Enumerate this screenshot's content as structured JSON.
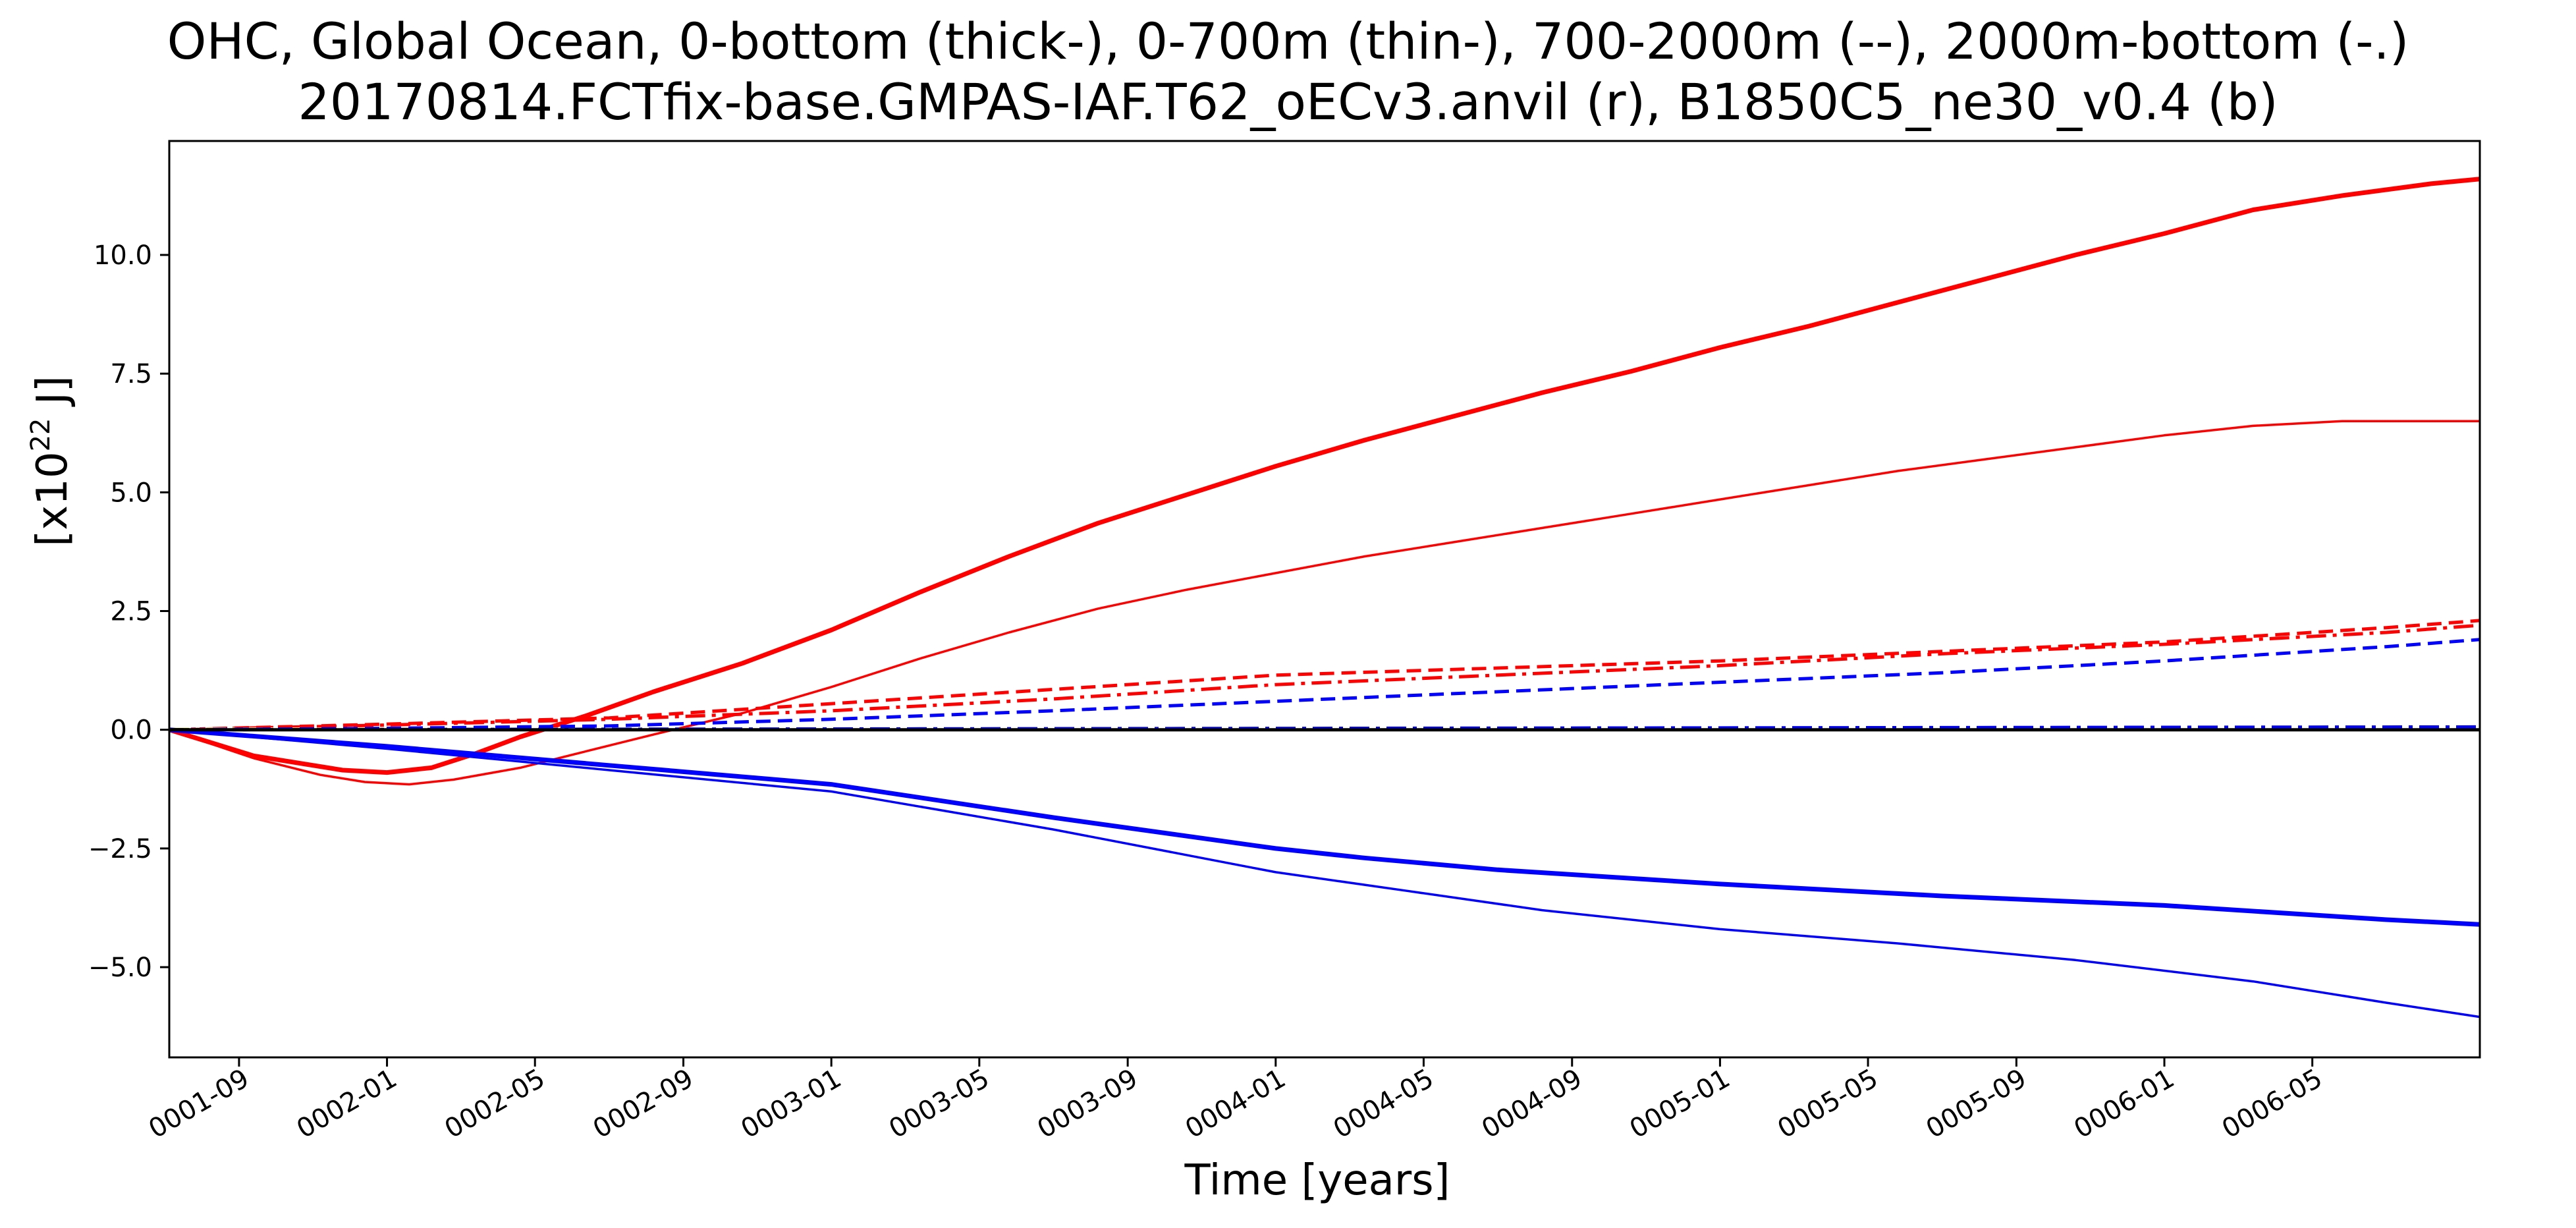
{
  "chart_data": {
    "type": "line",
    "title": "OHC, Global Ocean, 0-bottom (thick-), 0-700m (thin-), 700-2000m (--), 2000m-bottom (-.)",
    "subtitle": "20170814.FCTfix-base.GMPAS-IAF.T62_oECv3.anvil (r), B1850C5_ne30_v0.4 (b)",
    "xlabel": "Time [years]",
    "ylabel_base": "[x10",
    "ylabel_exp": "22",
    "ylabel_unit": " J]",
    "xlim": [
      0.51,
      5.71
    ],
    "ylim": [
      -6.9,
      12.4
    ],
    "grid": false,
    "legend": "none",
    "yticks": [
      -5.0,
      -2.5,
      0.0,
      2.5,
      5.0,
      7.5,
      10.0
    ],
    "ytick_labels": [
      "−5.0",
      "−2.5",
      "0.0",
      "2.5",
      "5.0",
      "7.5",
      "10.0"
    ],
    "xticks": [
      0.667,
      1.0,
      1.333,
      1.667,
      2.0,
      2.333,
      2.667,
      3.0,
      3.333,
      3.667,
      4.0,
      4.333,
      4.667,
      5.0,
      5.333
    ],
    "xtick_labels": [
      "0001-09",
      "0002-01",
      "0002-05",
      "0002-09",
      "0003-01",
      "0003-05",
      "0003-09",
      "0004-01",
      "0004-05",
      "0004-09",
      "0005-01",
      "0005-05",
      "0005-09",
      "0006-01",
      "0006-05"
    ],
    "zero_line_color": "#000000",
    "series": [
      {
        "color": "#ff0000",
        "style": "solid",
        "width": 7,
        "x": [
          0.51,
          0.7,
          0.9,
          1.0,
          1.1,
          1.2,
          1.3,
          1.45,
          1.6,
          1.8,
          2.0,
          2.2,
          2.4,
          2.6,
          2.8,
          3.0,
          3.2,
          3.4,
          3.6,
          3.8,
          4.0,
          4.2,
          4.4,
          4.6,
          4.8,
          5.0,
          5.2,
          5.4,
          5.6,
          5.71
        ],
        "y": [
          0.0,
          -0.55,
          -0.85,
          -0.9,
          -0.8,
          -0.5,
          -0.15,
          0.3,
          0.8,
          1.4,
          2.1,
          2.9,
          3.65,
          4.35,
          4.95,
          5.55,
          6.1,
          6.6,
          7.1,
          7.55,
          8.05,
          8.5,
          9.0,
          9.5,
          10.0,
          10.45,
          10.95,
          11.25,
          11.5,
          11.6
        ]
      },
      {
        "color": "#ff0000",
        "style": "solid",
        "width": 3.5,
        "x": [
          0.51,
          0.7,
          0.85,
          0.95,
          1.05,
          1.15,
          1.3,
          1.45,
          1.6,
          1.8,
          2.0,
          2.2,
          2.4,
          2.6,
          2.8,
          3.0,
          3.2,
          3.4,
          3.6,
          3.8,
          4.0,
          4.2,
          4.4,
          4.6,
          4.8,
          5.0,
          5.2,
          5.4,
          5.6,
          5.71
        ],
        "y": [
          0.0,
          -0.6,
          -0.95,
          -1.1,
          -1.15,
          -1.05,
          -0.8,
          -0.45,
          -0.1,
          0.35,
          0.9,
          1.5,
          2.05,
          2.55,
          2.95,
          3.3,
          3.65,
          3.95,
          4.25,
          4.55,
          4.85,
          5.15,
          5.45,
          5.7,
          5.95,
          6.2,
          6.4,
          6.5,
          6.5,
          6.5
        ]
      },
      {
        "color": "#ff0000",
        "style": "dash",
        "width": 5,
        "x": [
          0.51,
          1.0,
          1.5,
          2.0,
          2.5,
          3.0,
          3.5,
          4.0,
          4.5,
          5.0,
          5.5,
          5.71
        ],
        "y": [
          0.0,
          0.12,
          0.25,
          0.55,
          0.85,
          1.15,
          1.3,
          1.45,
          1.65,
          1.85,
          2.15,
          2.3
        ]
      },
      {
        "color": "#ff0000",
        "style": "dashdot",
        "width": 5,
        "x": [
          0.51,
          1.0,
          1.5,
          2.0,
          2.5,
          3.0,
          3.5,
          4.0,
          4.5,
          5.0,
          5.5,
          5.71
        ],
        "y": [
          0.0,
          0.1,
          0.22,
          0.4,
          0.65,
          0.95,
          1.15,
          1.35,
          1.6,
          1.8,
          2.05,
          2.2
        ]
      },
      {
        "color": "#ffff66",
        "style": "dashdot",
        "width": 4,
        "x": [
          0.51,
          5.71
        ],
        "y": [
          0.02,
          0.04
        ]
      },
      {
        "color": "#0000ff",
        "style": "solid",
        "width": 7,
        "x": [
          0.51,
          1.0,
          1.5,
          2.0,
          2.5,
          3.0,
          3.2,
          3.5,
          4.0,
          4.5,
          5.0,
          5.5,
          5.71
        ],
        "y": [
          0.0,
          -0.35,
          -0.75,
          -1.15,
          -1.85,
          -2.5,
          -2.7,
          -2.95,
          -3.25,
          -3.5,
          -3.7,
          -4.0,
          -4.1
        ]
      },
      {
        "color": "#0000ff",
        "style": "solid",
        "width": 3.5,
        "x": [
          0.51,
          1.0,
          1.5,
          2.0,
          2.5,
          3.0,
          3.3,
          3.6,
          4.0,
          4.4,
          4.8,
          5.2,
          5.5,
          5.71
        ],
        "y": [
          0.0,
          -0.4,
          -0.85,
          -1.3,
          -2.1,
          -3.0,
          -3.4,
          -3.8,
          -4.2,
          -4.5,
          -4.85,
          -5.3,
          -5.75,
          -6.05
        ]
      },
      {
        "color": "#0000ff",
        "style": "dash",
        "width": 5,
        "x": [
          0.51,
          1.0,
          1.5,
          2.0,
          2.5,
          3.0,
          3.5,
          4.0,
          4.5,
          5.0,
          5.5,
          5.71
        ],
        "y": [
          0.0,
          0.03,
          0.08,
          0.22,
          0.4,
          0.6,
          0.8,
          1.0,
          1.2,
          1.45,
          1.75,
          1.9
        ]
      },
      {
        "color": "#0000ff",
        "style": "dashdot",
        "width": 5,
        "x": [
          0.51,
          5.71
        ],
        "y": [
          0.0,
          0.06
        ]
      },
      {
        "color": "#000080",
        "style": "solid",
        "width": 3,
        "x": [
          0.51,
          5.71
        ],
        "y": [
          0.0,
          0.0
        ]
      }
    ]
  }
}
